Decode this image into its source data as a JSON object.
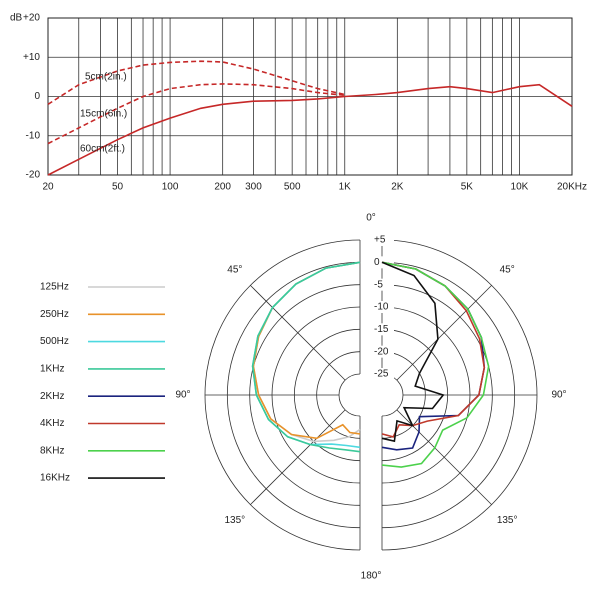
{
  "chart_data": [
    {
      "type": "line",
      "ylabel": "dB",
      "xscale": "log",
      "x": [
        20,
        30,
        50,
        70,
        100,
        150,
        200,
        300,
        500,
        700,
        1000,
        1500,
        2000,
        3000,
        4000,
        5000,
        7000,
        10000,
        13000,
        20000
      ],
      "xlim": [
        20,
        20000
      ],
      "ylim": [
        -20,
        20
      ],
      "xticks": [
        20,
        50,
        100,
        200,
        300,
        500,
        {
          "value": 1000,
          "label": "1K"
        },
        {
          "value": 2000,
          "label": "2K"
        },
        {
          "value": 5000,
          "label": "5K"
        },
        {
          "value": 10000,
          "label": "10K"
        },
        {
          "value": 20000,
          "label": "20KHz"
        }
      ],
      "x_grid": [
        20,
        30,
        40,
        50,
        60,
        70,
        80,
        90,
        100,
        200,
        300,
        400,
        500,
        600,
        700,
        800,
        900,
        1000,
        2000,
        3000,
        4000,
        5000,
        6000,
        7000,
        8000,
        9000,
        10000,
        20000
      ],
      "yticks": [
        {
          "value": 20,
          "label": "+20"
        },
        {
          "value": 10,
          "label": "+10"
        },
        0,
        -10,
        -20
      ],
      "series": [
        {
          "name": "5cm(2in.)",
          "color": "#c62828",
          "dashed": true,
          "values": [
            -2,
            3,
            6.5,
            8,
            8.7,
            9,
            8.8,
            7,
            4,
            2,
            0.5,
            null,
            null,
            null,
            null,
            null,
            null,
            null,
            null,
            null
          ]
        },
        {
          "name": "15cm(6in.)",
          "color": "#c62828",
          "dashed": true,
          "values": [
            -12,
            -8,
            -3,
            0,
            2,
            3,
            3.2,
            3,
            2,
            1,
            0.3,
            null,
            null,
            null,
            null,
            null,
            null,
            null,
            null,
            null
          ]
        },
        {
          "name": "60cm(2ft.)",
          "color": "#c62828",
          "dashed": false,
          "values": [
            -20,
            -16,
            -11,
            -8,
            -5.5,
            -3,
            -2,
            -1.2,
            -1,
            -0.6,
            0,
            0.5,
            1,
            2,
            2.5,
            2,
            1,
            2.5,
            3,
            -2.5
          ]
        }
      ]
    },
    {
      "type": "polar",
      "theta": [
        0,
        15,
        30,
        45,
        60,
        75,
        90,
        105,
        120,
        135,
        150,
        165,
        180
      ],
      "rlim": [
        -25,
        5
      ],
      "rticks": [
        {
          "value": 5,
          "label": "+5"
        },
        0,
        -5,
        -10,
        -15,
        -20,
        -25
      ],
      "thetaticks": [
        {
          "value": 0,
          "label": "0°"
        },
        {
          "value": 45,
          "label": "45°"
        },
        {
          "value": 90,
          "label": "90°"
        },
        {
          "value": 135,
          "label": "135°"
        },
        {
          "value": 180,
          "label": "180°"
        }
      ],
      "series": [
        {
          "name": "125Hz",
          "color": "#cccccc",
          "side": "left",
          "values": [
            0,
            -0.3,
            -1,
            -2,
            -3.5,
            -5,
            -7,
            -9,
            -12,
            -15,
            -18,
            -20,
            -22
          ]
        },
        {
          "name": "250Hz",
          "color": "#e8922a",
          "side": "left",
          "values": [
            0,
            -0.3,
            -1,
            -2,
            -3.5,
            -5,
            -7,
            -9,
            -12,
            -16,
            -22,
            -21,
            -21
          ]
        },
        {
          "name": "500Hz",
          "color": "#4dd9e0",
          "side": "left",
          "values": [
            0,
            -0.3,
            -1,
            -2,
            -3.3,
            -4.8,
            -6.5,
            -8.5,
            -11,
            -14,
            -17,
            -18,
            -18
          ]
        },
        {
          "name": "1KHz",
          "color": "#3cc99a",
          "side": "left",
          "values": [
            0,
            -0.3,
            -1,
            -2,
            -3.3,
            -4.8,
            -6.5,
            -8.5,
            -11,
            -14,
            -16,
            -17,
            -17
          ]
        },
        {
          "name": "2KHz",
          "color": "#1a237e",
          "side": "right",
          "values": [
            0,
            -0.5,
            -1.5,
            -2.5,
            -4,
            -6,
            -8,
            -12,
            -20,
            -18,
            -16,
            -17,
            -18
          ]
        },
        {
          "name": "4KHz",
          "color": "#c0392b",
          "side": "right",
          "values": [
            0,
            -0.5,
            -1.5,
            -3,
            -4.5,
            -6,
            -8,
            -12,
            -18,
            -20,
            -22,
            -20,
            -21
          ]
        },
        {
          "name": "8KHz",
          "color": "#4cd14c",
          "side": "right",
          "values": [
            0,
            -0.5,
            -1.5,
            -2.5,
            -4,
            -5,
            -7,
            -10,
            -14,
            -13,
            -12,
            -13,
            -14
          ]
        },
        {
          "name": "16KHz",
          "color": "#111111",
          "side": "right",
          "values": [
            0,
            -2,
            -6,
            -12,
            -20,
            -22,
            -16,
            -18,
            -24,
            -20,
            -23,
            -19,
            -20
          ]
        }
      ]
    }
  ]
}
